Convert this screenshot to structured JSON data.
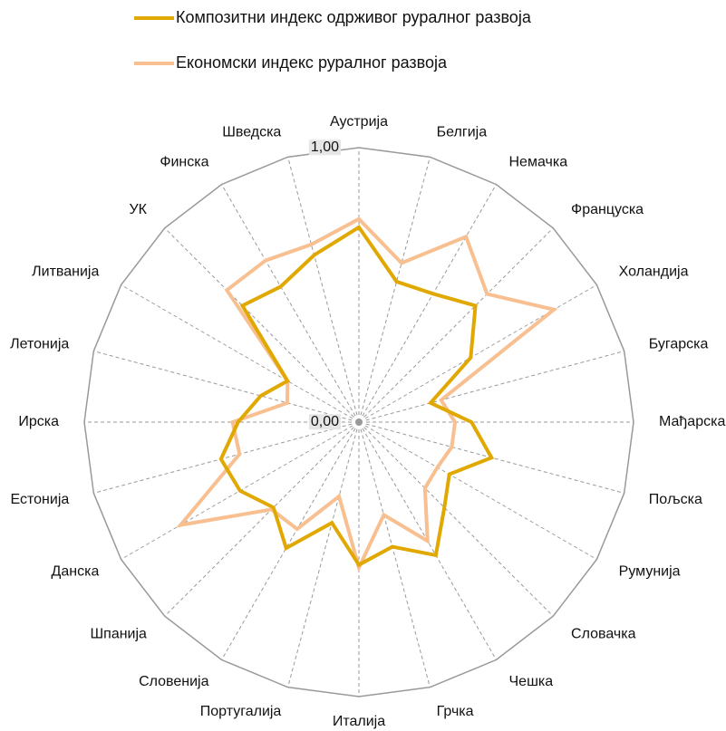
{
  "chart_data": {
    "type": "radar",
    "categories": [
      "Аустрија",
      "Белгија",
      "Немачка",
      "Француска",
      "Холандија",
      "Бугарска",
      "Мађарска",
      "Пољска",
      "Румунија",
      "Словачка",
      "Чешка",
      "Грчка",
      "Италија",
      "Португалија",
      "Словенија",
      "Шпанија",
      "Данска",
      "Естонија",
      "Ирска",
      "Летонија",
      "Литванија",
      "УК",
      "Финска",
      "Шведска"
    ],
    "series": [
      {
        "name": "Композитни индекс одрживог руралног развоја",
        "color": "#e0a800",
        "values": [
          0.71,
          0.53,
          0.54,
          0.6,
          0.47,
          0.27,
          0.41,
          0.5,
          0.38,
          0.44,
          0.56,
          0.47,
          0.52,
          0.38,
          0.53,
          0.44,
          0.5,
          0.52,
          0.44,
          0.37,
          0.3,
          0.6,
          0.57,
          0.63
        ]
      },
      {
        "name": "Економски индекс руралног развоја",
        "color": "#f8bf90",
        "values": [
          0.74,
          0.6,
          0.78,
          0.66,
          0.82,
          0.31,
          0.35,
          0.35,
          0.33,
          0.34,
          0.5,
          0.35,
          0.53,
          0.28,
          0.45,
          0.45,
          0.75,
          0.45,
          0.46,
          0.27,
          0.3,
          0.68,
          0.68,
          0.67
        ]
      }
    ],
    "rlim": [
      0,
      1
    ],
    "rticks": [
      {
        "value": 0,
        "label": "0,00"
      },
      {
        "value": 1,
        "label": "1,00"
      }
    ],
    "grid": true
  }
}
